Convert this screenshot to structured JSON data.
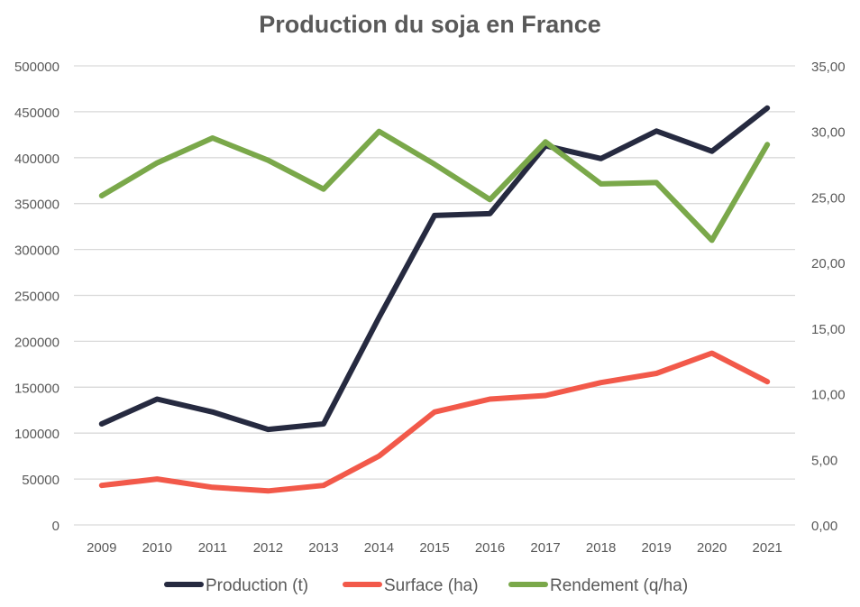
{
  "chart_data": {
    "type": "line",
    "title": "Production du soja en France",
    "x": [
      "2009",
      "2010",
      "2011",
      "2012",
      "2013",
      "2014",
      "2015",
      "2016",
      "2017",
      "2018",
      "2019",
      "2020",
      "2021"
    ],
    "y_left": {
      "min": 0,
      "max": 500000,
      "step": 50000,
      "ticks": [
        "0",
        "50000",
        "100000",
        "150000",
        "200000",
        "250000",
        "300000",
        "350000",
        "400000",
        "450000",
        "500000"
      ]
    },
    "y_right": {
      "min": 0,
      "max": 35,
      "step": 5,
      "ticks": [
        "0,00",
        "5,00",
        "10,00",
        "15,00",
        "20,00",
        "25,00",
        "30,00",
        "35,00"
      ]
    },
    "grid": true,
    "legend_position": "bottom",
    "series": [
      {
        "name": "Production (t)",
        "axis": "left",
        "color": "#262a40",
        "values": [
          110000,
          137000,
          123000,
          104000,
          110000,
          226000,
          337000,
          339000,
          413000,
          399000,
          429000,
          407000,
          454000
        ]
      },
      {
        "name": "Surface (ha)",
        "axis": "left",
        "color": "#f2594a",
        "values": [
          43000,
          50000,
          41000,
          37000,
          43000,
          75000,
          123000,
          137000,
          141000,
          155000,
          165000,
          187000,
          156000
        ]
      },
      {
        "name": "Rendement (q/ha)",
        "axis": "right",
        "color": "#7aa84a",
        "values": [
          25.1,
          27.6,
          29.5,
          27.8,
          25.6,
          30.0,
          27.5,
          24.8,
          29.2,
          26.0,
          26.1,
          21.7,
          29.0
        ]
      }
    ]
  }
}
